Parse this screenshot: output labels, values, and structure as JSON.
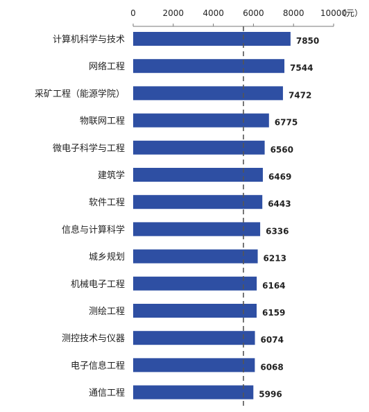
{
  "chart_data": {
    "type": "bar",
    "orientation": "horizontal",
    "categories": [
      "计算机科学与技术",
      "网络工程",
      "采矿工程（能源学院）",
      "物联网工程",
      "微电子科学与工程",
      "建筑学",
      "软件工程",
      "信息与计算科学",
      "城乡规划",
      "机械电子工程",
      "测绘工程",
      "测控技术与仪器",
      "电子信息工程",
      "通信工程"
    ],
    "values": [
      7850,
      7544,
      7472,
      6775,
      6560,
      6469,
      6443,
      6336,
      6213,
      6164,
      6159,
      6074,
      6068,
      5996
    ],
    "data_labels": [
      "7850",
      "7544",
      "7472",
      "6775",
      "6560",
      "6469",
      "6443",
      "6336",
      "6213",
      "6164",
      "6159",
      "6074",
      "6068",
      "5996"
    ],
    "xlim": [
      0,
      10000
    ],
    "x_ticks": [
      0,
      2000,
      4000,
      6000,
      8000,
      10000
    ],
    "x_tick_labels": [
      "0",
      "2000",
      "4000",
      "6000",
      "8000",
      "10000"
    ],
    "x_unit": "（元）",
    "x_axis_position": "top",
    "reference_line": 5500,
    "reference_line_style": "dashed",
    "bar_color": "#2E4FA3",
    "grid": false,
    "legend": "none"
  }
}
